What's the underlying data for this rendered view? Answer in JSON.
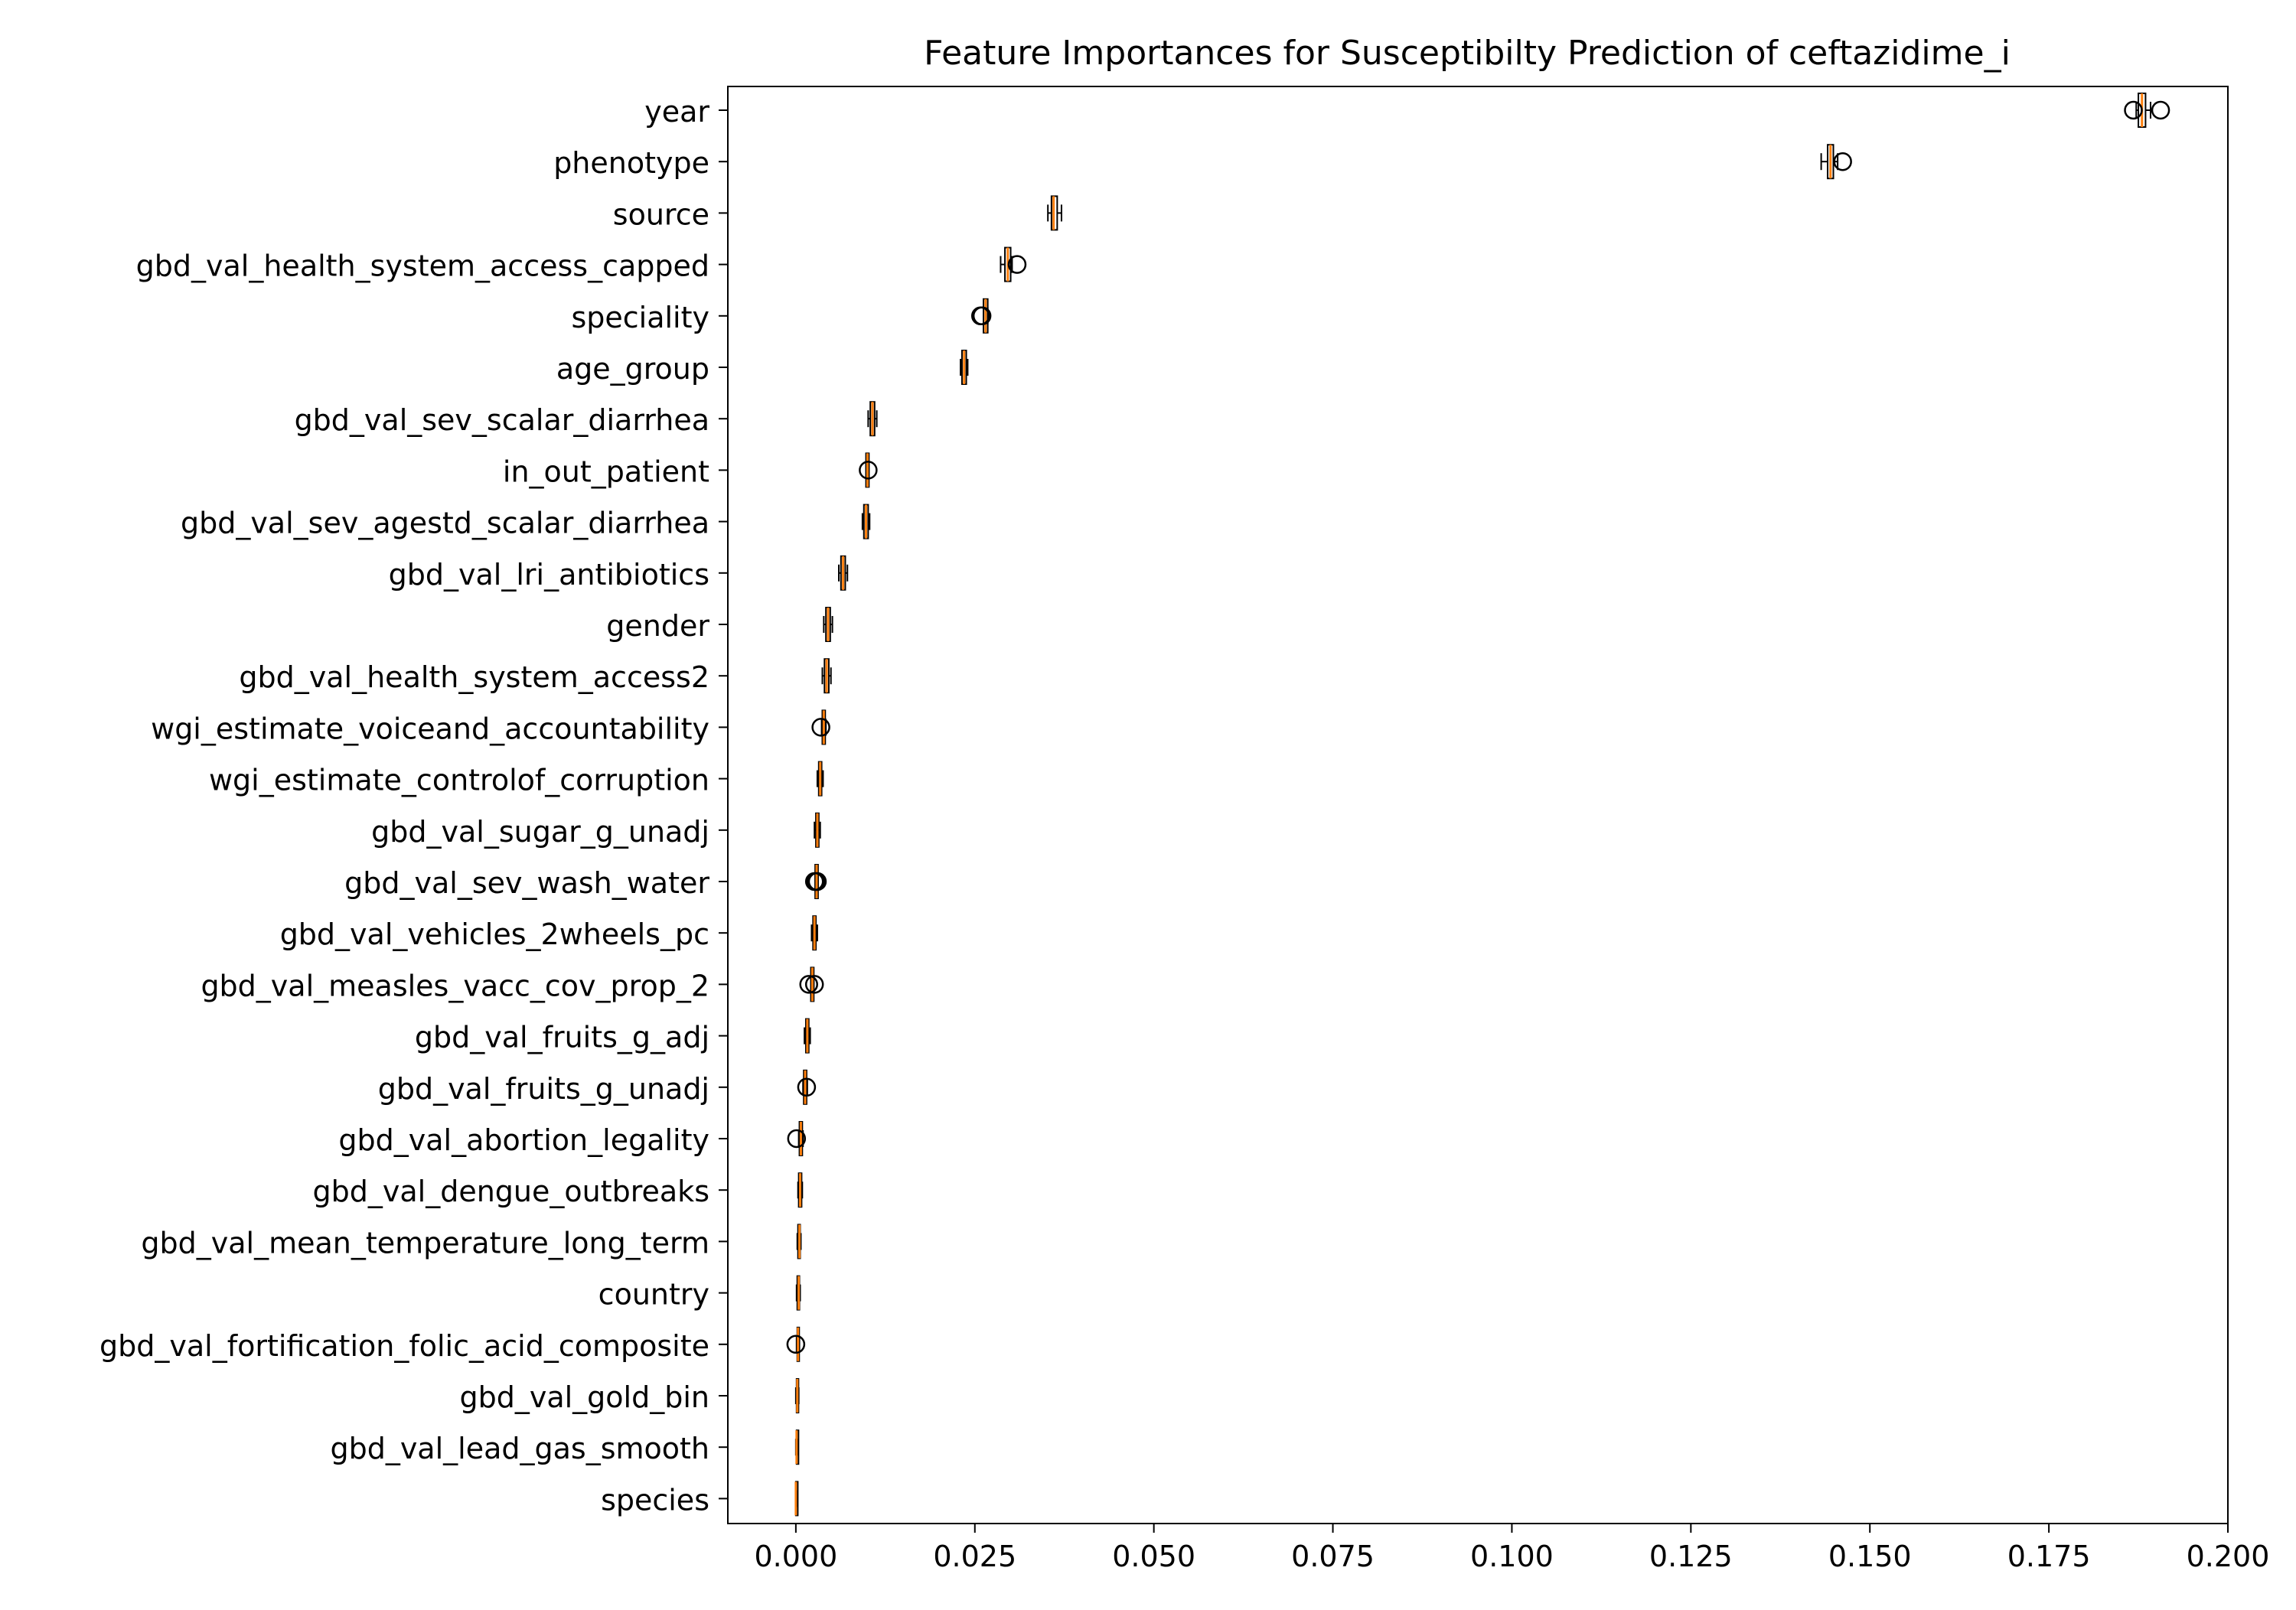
{
  "chart_data": {
    "type": "box",
    "orientation": "horizontal",
    "title": "Feature Importances for Susceptibilty Prediction of ceftazidime_i",
    "xlabel": "",
    "ylabel": "",
    "xlim": [
      -0.0095,
      0.2
    ],
    "xticks": [
      0.0,
      0.025,
      0.05,
      0.075,
      0.1,
      0.125,
      0.15,
      0.175,
      0.2
    ],
    "xtick_labels": [
      "0.000",
      "0.025",
      "0.050",
      "0.075",
      "0.100",
      "0.125",
      "0.150",
      "0.175",
      "0.200"
    ],
    "grid": false,
    "colors": {
      "box": "#000000",
      "median": "#ff7f0e",
      "flier": "#000000"
    },
    "features": [
      {
        "name": "year",
        "q1": 0.1875,
        "median": 0.188,
        "q3": 0.1885,
        "wlo": 0.1872,
        "whi": 0.1892,
        "fliers": [
          0.1868,
          0.1906
        ]
      },
      {
        "name": "phenotype",
        "q1": 0.1441,
        "median": 0.1445,
        "q3": 0.1449,
        "wlo": 0.1432,
        "whi": 0.1455,
        "fliers": [
          0.1462
        ]
      },
      {
        "name": "source",
        "q1": 0.0357,
        "median": 0.036,
        "q3": 0.0365,
        "wlo": 0.0352,
        "whi": 0.0371,
        "fliers": []
      },
      {
        "name": "gbd_val_health_system_access_capped",
        "q1": 0.0292,
        "median": 0.0296,
        "q3": 0.03,
        "wlo": 0.0286,
        "whi": 0.0302,
        "fliers": [
          0.0309
        ]
      },
      {
        "name": "speciality",
        "q1": 0.0262,
        "median": 0.0265,
        "q3": 0.0268,
        "wlo": 0.0262,
        "whi": 0.0268,
        "fliers": [
          0.026,
          0.0258
        ]
      },
      {
        "name": "age_group",
        "q1": 0.0232,
        "median": 0.0235,
        "q3": 0.0238,
        "wlo": 0.023,
        "whi": 0.024,
        "fliers": []
      },
      {
        "name": "gbd_val_sev_scalar_diarrhea",
        "q1": 0.0104,
        "median": 0.0107,
        "q3": 0.011,
        "wlo": 0.0101,
        "whi": 0.0113,
        "fliers": []
      },
      {
        "name": "in_out_patient",
        "q1": 0.0098,
        "median": 0.01,
        "q3": 0.0102,
        "wlo": 0.0098,
        "whi": 0.0102,
        "fliers": [
          0.0101
        ]
      },
      {
        "name": "gbd_val_sev_agestd_scalar_diarrhea",
        "q1": 0.0095,
        "median": 0.0098,
        "q3": 0.0101,
        "wlo": 0.0093,
        "whi": 0.0103,
        "fliers": []
      },
      {
        "name": "gbd_val_lri_antibiotics",
        "q1": 0.0063,
        "median": 0.0066,
        "q3": 0.0069,
        "wlo": 0.006,
        "whi": 0.0072,
        "fliers": []
      },
      {
        "name": "gender",
        "q1": 0.0042,
        "median": 0.0045,
        "q3": 0.0048,
        "wlo": 0.0039,
        "whi": 0.0051,
        "fliers": []
      },
      {
        "name": "gbd_val_health_system_access2",
        "q1": 0.004,
        "median": 0.0043,
        "q3": 0.0046,
        "wlo": 0.0037,
        "whi": 0.0049,
        "fliers": []
      },
      {
        "name": "wgi_estimate_voiceand_accountability",
        "q1": 0.0037,
        "median": 0.0039,
        "q3": 0.0041,
        "wlo": 0.0036,
        "whi": 0.0042,
        "fliers": [
          0.0035
        ]
      },
      {
        "name": "wgi_estimate_controlof_corruption",
        "q1": 0.0032,
        "median": 0.0034,
        "q3": 0.0036,
        "wlo": 0.003,
        "whi": 0.0038,
        "fliers": []
      },
      {
        "name": "gbd_val_sugar_g_unadj",
        "q1": 0.0028,
        "median": 0.003,
        "q3": 0.0032,
        "wlo": 0.0026,
        "whi": 0.0034,
        "fliers": []
      },
      {
        "name": "gbd_val_sev_wash_water",
        "q1": 0.0027,
        "median": 0.0029,
        "q3": 0.0031,
        "wlo": 0.0027,
        "whi": 0.0031,
        "fliers": [
          0.0026,
          0.0028,
          0.003
        ]
      },
      {
        "name": "gbd_val_vehicles_2wheels_pc",
        "q1": 0.0024,
        "median": 0.0026,
        "q3": 0.0028,
        "wlo": 0.0022,
        "whi": 0.003,
        "fliers": []
      },
      {
        "name": "gbd_val_measles_vacc_cov_prop_2",
        "q1": 0.0021,
        "median": 0.0023,
        "q3": 0.0025,
        "wlo": 0.0021,
        "whi": 0.0025,
        "fliers": [
          0.0018,
          0.0026
        ]
      },
      {
        "name": "gbd_val_fruits_g_adj",
        "q1": 0.0014,
        "median": 0.0016,
        "q3": 0.0018,
        "wlo": 0.0012,
        "whi": 0.002,
        "fliers": []
      },
      {
        "name": "gbd_val_fruits_g_unadj",
        "q1": 0.0011,
        "median": 0.0013,
        "q3": 0.0015,
        "wlo": 0.001,
        "whi": 0.0016,
        "fliers": [
          0.0015
        ]
      },
      {
        "name": "gbd_val_abortion_legality",
        "q1": 0.0005,
        "median": 0.0007,
        "q3": 0.0009,
        "wlo": 0.0004,
        "whi": 0.001,
        "fliers": [
          0.0001
        ]
      },
      {
        "name": "gbd_val_dengue_outbreaks",
        "q1": 0.0004,
        "median": 0.0006,
        "q3": 0.0008,
        "wlo": 0.0003,
        "whi": 0.0009,
        "fliers": []
      },
      {
        "name": "gbd_val_mean_temperature_long_term",
        "q1": 0.0003,
        "median": 0.0005,
        "q3": 0.0006,
        "wlo": 0.0002,
        "whi": 0.0007,
        "fliers": []
      },
      {
        "name": "country",
        "q1": 0.0002,
        "median": 0.0004,
        "q3": 0.0005,
        "wlo": 0.0001,
        "whi": 0.0006,
        "fliers": []
      },
      {
        "name": "gbd_val_fortification_folic_acid_composite",
        "q1": 0.0002,
        "median": 0.0003,
        "q3": 0.0004,
        "wlo": 0.0001,
        "whi": 0.0005,
        "fliers": [
          0.0
        ]
      },
      {
        "name": "gbd_val_gold_bin",
        "q1": 0.0001,
        "median": 0.0002,
        "q3": 0.0003,
        "wlo": 0.0,
        "whi": 0.0004,
        "fliers": []
      },
      {
        "name": "gbd_val_lead_gas_smooth",
        "q1": 0.0001,
        "median": 0.0001,
        "q3": 0.0002,
        "wlo": 0.0,
        "whi": 0.0002,
        "fliers": []
      },
      {
        "name": "species",
        "q1": 0.0,
        "median": 0.0,
        "q3": 0.0001,
        "wlo": 0.0,
        "whi": 0.0001,
        "fliers": []
      }
    ]
  }
}
